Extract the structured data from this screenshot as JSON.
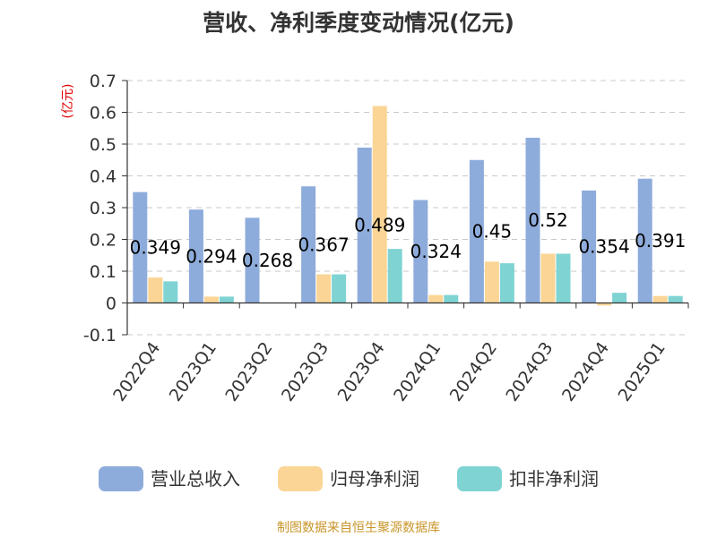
{
  "chart_data": {
    "type": "bar",
    "title": "营收、净利季度变动情况(亿元)",
    "ylabel": "(亿元)",
    "ylim": [
      -0.1,
      0.7
    ],
    "yticks": [
      -0.1,
      0,
      0.1,
      0.2,
      0.3,
      0.4,
      0.5,
      0.6,
      0.7
    ],
    "grid": true,
    "legend_position": "bottom",
    "categories": [
      "2022Q4",
      "2023Q1",
      "2023Q2",
      "2023Q3",
      "2023Q4",
      "2024Q1",
      "2024Q2",
      "2024Q3",
      "2024Q4",
      "2025Q1"
    ],
    "series": [
      {
        "name": "营业总收入",
        "color": "#8eacdb",
        "values": [
          0.349,
          0.294,
          0.268,
          0.367,
          0.489,
          0.324,
          0.45,
          0.52,
          0.354,
          0.391
        ]
      },
      {
        "name": "归母净利润",
        "color": "#fbd595",
        "values": [
          0.08,
          0.02,
          0.0,
          0.09,
          0.62,
          0.025,
          0.13,
          0.155,
          -0.008,
          0.022
        ]
      },
      {
        "name": "扣非净利润",
        "color": "#7fd3d3",
        "values": [
          0.068,
          0.02,
          0.0,
          0.09,
          0.17,
          0.025,
          0.125,
          0.155,
          0.032,
          0.022
        ]
      }
    ],
    "data_labels": [
      "0.349",
      "0.294",
      "0.268",
      "0.367",
      "0.489",
      "0.324",
      "0.45",
      "0.52",
      "0.354",
      "0.391"
    ]
  },
  "source_text": "制图数据来自恒生聚源数据库"
}
